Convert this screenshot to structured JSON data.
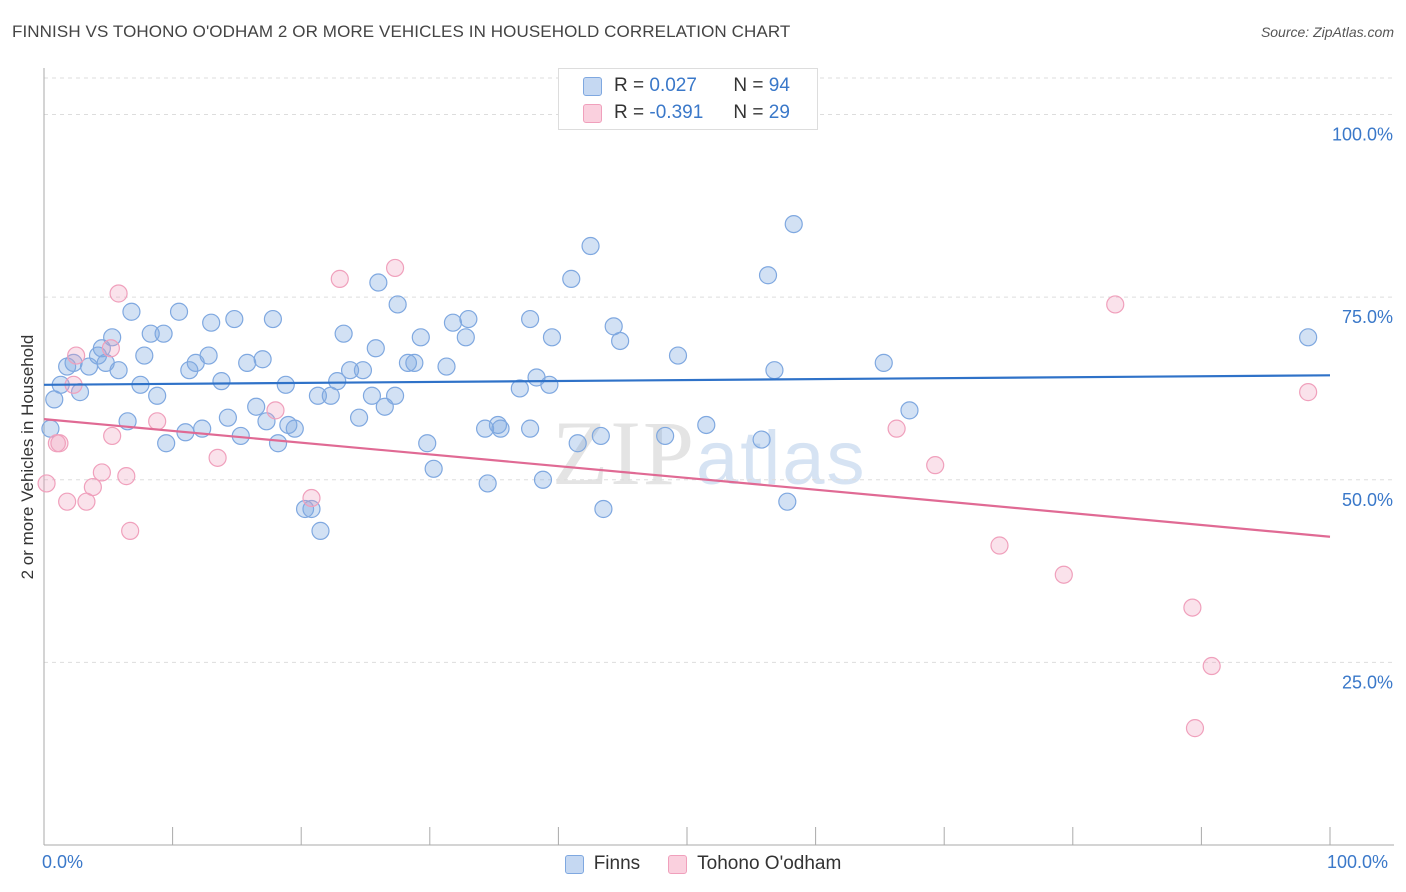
{
  "title": "FINNISH VS TOHONO O'ODHAM 2 OR MORE VEHICLES IN HOUSEHOLD CORRELATION CHART",
  "source": "Source: ZipAtlas.com",
  "watermark": {
    "zip": "ZIP",
    "atlas": "atlas"
  },
  "colors": {
    "finns": "#7fa8e0",
    "tohono": "#f0a0bc",
    "finns_line": "#2f72c8",
    "tohono_line": "#e06a94",
    "grid": "#dddddd",
    "tick_label": "#3a78c9"
  },
  "legend": {
    "finns": {
      "r_label": "R =",
      "r_value": "0.027",
      "n_label": "N =",
      "n_value": "94"
    },
    "tohono": {
      "r_label": "R =",
      "r_value": "-0.391",
      "n_label": "N =",
      "n_value": "29"
    }
  },
  "chart_data": {
    "type": "scatter",
    "title": "FINNISH VS TOHONO O'ODHAM 2 OR MORE VEHICLES IN HOUSEHOLD CORRELATION CHART",
    "xlabel": "",
    "ylabel": "2 or more Vehicles in Household",
    "xlim": [
      0,
      100
    ],
    "ylim": [
      0,
      105
    ],
    "x_tick_labels": [
      "0.0%",
      "100.0%"
    ],
    "y_ticks": [
      25,
      50,
      75,
      100
    ],
    "y_tick_labels": [
      "25.0%",
      "50.0%",
      "75.0%",
      "100.0%"
    ],
    "grid": "horizontal dashed",
    "legend_position": "top-center",
    "series": [
      {
        "name": "Finns",
        "trend": {
          "x": [
            0,
            100
          ],
          "y": [
            63.0,
            64.3
          ]
        },
        "points": [
          [
            0.5,
            57
          ],
          [
            0.8,
            61
          ],
          [
            1.3,
            63
          ],
          [
            1.8,
            65.5
          ],
          [
            2.3,
            66
          ],
          [
            2.8,
            62
          ],
          [
            3.5,
            65.5
          ],
          [
            4.2,
            67
          ],
          [
            4.5,
            68
          ],
          [
            4.8,
            66
          ],
          [
            5.3,
            69.5
          ],
          [
            5.8,
            65
          ],
          [
            6.5,
            58
          ],
          [
            6.8,
            73
          ],
          [
            7.5,
            63
          ],
          [
            7.8,
            67
          ],
          [
            8.3,
            70
          ],
          [
            8.8,
            61.5
          ],
          [
            9.3,
            70
          ],
          [
            9.5,
            55
          ],
          [
            10.5,
            73
          ],
          [
            11,
            56.5
          ],
          [
            11.3,
            65
          ],
          [
            11.8,
            66
          ],
          [
            12.3,
            57
          ],
          [
            12.8,
            67
          ],
          [
            13,
            71.5
          ],
          [
            13.8,
            63.5
          ],
          [
            14.3,
            58.5
          ],
          [
            14.8,
            72
          ],
          [
            15.3,
            56
          ],
          [
            15.8,
            66
          ],
          [
            16.5,
            60
          ],
          [
            17,
            66.5
          ],
          [
            17.3,
            58
          ],
          [
            17.8,
            72
          ],
          [
            18.2,
            55
          ],
          [
            18.8,
            63
          ],
          [
            19,
            57.5
          ],
          [
            19.5,
            57
          ],
          [
            20.3,
            46
          ],
          [
            20.8,
            46
          ],
          [
            21.3,
            61.5
          ],
          [
            21.5,
            43
          ],
          [
            22.3,
            61.5
          ],
          [
            22.8,
            63.5
          ],
          [
            23.3,
            70
          ],
          [
            23.8,
            65
          ],
          [
            24.5,
            58.5
          ],
          [
            24.8,
            65
          ],
          [
            25.5,
            61.5
          ],
          [
            25.8,
            68
          ],
          [
            26,
            77
          ],
          [
            26.5,
            60
          ],
          [
            27.3,
            61.5
          ],
          [
            27.5,
            74
          ],
          [
            28.3,
            66
          ],
          [
            28.8,
            66
          ],
          [
            29.3,
            69.5
          ],
          [
            29.8,
            55
          ],
          [
            30.3,
            51.5
          ],
          [
            31.3,
            65.5
          ],
          [
            31.8,
            71.5
          ],
          [
            32.8,
            69.5
          ],
          [
            33,
            72
          ],
          [
            34.3,
            57
          ],
          [
            34.5,
            49.5
          ],
          [
            35.3,
            57.5
          ],
          [
            35.5,
            57
          ],
          [
            37,
            62.5
          ],
          [
            37.8,
            57
          ],
          [
            37.8,
            72
          ],
          [
            38.3,
            64
          ],
          [
            38.8,
            50
          ],
          [
            39.3,
            63
          ],
          [
            39.5,
            69.5
          ],
          [
            41,
            77.5
          ],
          [
            41.5,
            55
          ],
          [
            42.5,
            82
          ],
          [
            43.3,
            56
          ],
          [
            43.5,
            46
          ],
          [
            44.3,
            71
          ],
          [
            44.8,
            69
          ],
          [
            48.3,
            56
          ],
          [
            49.3,
            67
          ],
          [
            51.5,
            57.5
          ],
          [
            55.8,
            55.5
          ],
          [
            56.3,
            78
          ],
          [
            56.8,
            65
          ],
          [
            57.8,
            47
          ],
          [
            58.3,
            85
          ],
          [
            65.3,
            66
          ],
          [
            67.3,
            59.5
          ],
          [
            98.3,
            69.5
          ]
        ]
      },
      {
        "name": "Tohono O'odham",
        "trend": {
          "x": [
            0,
            100
          ],
          "y": [
            58.3,
            42.2
          ]
        },
        "points": [
          [
            0.2,
            49.5
          ],
          [
            1.2,
            55
          ],
          [
            1.8,
            47
          ],
          [
            2.5,
            67
          ],
          [
            3.3,
            47
          ],
          [
            3.8,
            49
          ],
          [
            4.5,
            51
          ],
          [
            5.2,
            68
          ],
          [
            5.3,
            56
          ],
          [
            5.8,
            75.5
          ],
          [
            6.4,
            50.5
          ],
          [
            6.7,
            43
          ],
          [
            8.8,
            58
          ],
          [
            13.5,
            53
          ],
          [
            18,
            59.5
          ],
          [
            20.8,
            47.5
          ],
          [
            23,
            77.5
          ],
          [
            27.3,
            79
          ],
          [
            66.3,
            57
          ],
          [
            69.3,
            52
          ],
          [
            74.3,
            41
          ],
          [
            79.3,
            37
          ],
          [
            83.3,
            74
          ],
          [
            89.3,
            32.5
          ],
          [
            90.8,
            24.5
          ],
          [
            89.5,
            16
          ],
          [
            98.3,
            62
          ],
          [
            1.0,
            55
          ],
          [
            2.3,
            63
          ]
        ]
      }
    ]
  }
}
